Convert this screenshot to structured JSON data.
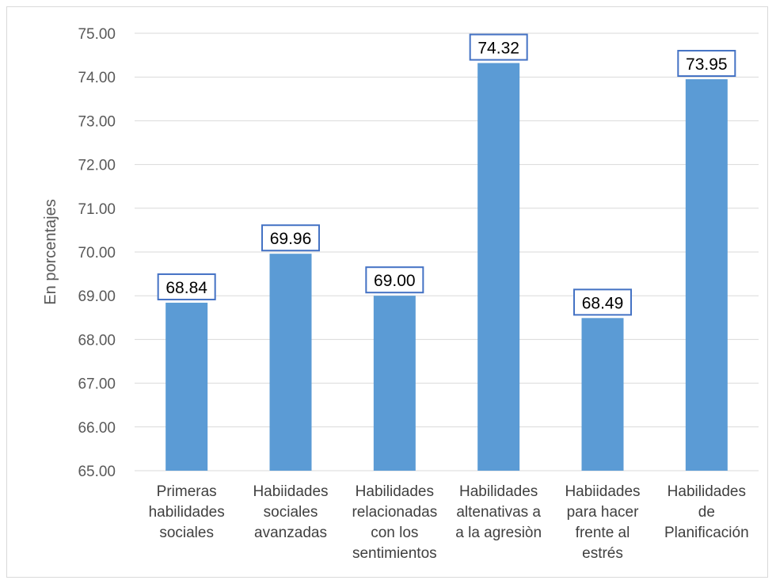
{
  "chart_data": {
    "type": "bar",
    "title": "",
    "xlabel": "",
    "ylabel": "En porcentajes",
    "ylim": [
      65,
      75
    ],
    "ytick_step": 1,
    "ytick_format_decimals": 2,
    "grid": true,
    "legend": "none",
    "bar_color": "#5b9bd5",
    "label_box_color": "#4472c4",
    "gridline_color": "#d9d9d9",
    "categories": [
      [
        "Primeras",
        "habilidades",
        "sociales"
      ],
      [
        "Habiidades",
        "sociales",
        "avanzadas"
      ],
      [
        "Habilidades",
        "relacionadas",
        "con los",
        "sentimientos"
      ],
      [
        "Habilidades",
        "altenativas a",
        "a la agresiòn"
      ],
      [
        "Habiidades",
        "para hacer",
        "frente al",
        "estrés"
      ],
      [
        "Habilidades",
        "de",
        "Planificación"
      ]
    ],
    "values": [
      68.84,
      69.96,
      69.0,
      74.32,
      68.49,
      73.95
    ],
    "data_labels": [
      "68.84",
      "69.96",
      "69.00",
      "74.32",
      "68.49",
      "73.95"
    ]
  }
}
